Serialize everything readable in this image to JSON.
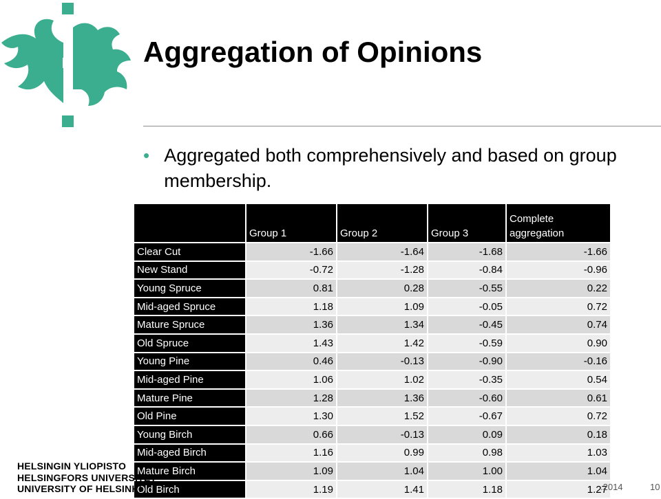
{
  "slide": {
    "title": "Aggregation of Opinions",
    "bullet": "Aggregated both comprehensively and based on group membership.",
    "colors": {
      "logo_green": "#3aae8e",
      "header_bg": "#000000",
      "row_odd": "#d9d9d9",
      "row_even": "#ededed"
    }
  },
  "table": {
    "headers": [
      "",
      "Group 1",
      "Group 2",
      "Group 3",
      "Complete aggregation"
    ],
    "rows": [
      {
        "label": "Clear Cut",
        "values": [
          "-1.66",
          "-1.64",
          "-1.68",
          "-1.66"
        ]
      },
      {
        "label": "New Stand",
        "values": [
          "-0.72",
          "-1.28",
          "-0.84",
          "-0.96"
        ]
      },
      {
        "label": "Young Spruce",
        "values": [
          "0.81",
          "0.28",
          "-0.55",
          "0.22"
        ]
      },
      {
        "label": "Mid-aged Spruce",
        "values": [
          "1.18",
          "1.09",
          "-0.05",
          "0.72"
        ]
      },
      {
        "label": "Mature Spruce",
        "values": [
          "1.36",
          "1.34",
          "-0.45",
          "0.74"
        ]
      },
      {
        "label": "Old Spruce",
        "values": [
          "1.43",
          "1.42",
          "-0.59",
          "0.90"
        ]
      },
      {
        "label": "Young Pine",
        "values": [
          "0.46",
          "-0.13",
          "-0.90",
          "-0.16"
        ]
      },
      {
        "label": "Mid-aged Pine",
        "values": [
          "1.06",
          "1.02",
          "-0.35",
          "0.54"
        ]
      },
      {
        "label": "Mature Pine",
        "values": [
          "1.28",
          "1.36",
          "-0.60",
          "0.61"
        ]
      },
      {
        "label": "Old Pine",
        "values": [
          "1.30",
          "1.52",
          "-0.67",
          "0.72"
        ]
      },
      {
        "label": "Young Birch",
        "values": [
          "0.66",
          "-0.13",
          "0.09",
          "0.18"
        ]
      },
      {
        "label": "Mid-aged Birch",
        "values": [
          "1.16",
          "0.99",
          "0.98",
          "1.03"
        ]
      },
      {
        "label": "Mature Birch",
        "values": [
          "1.09",
          "1.04",
          "1.00",
          "1.04"
        ]
      },
      {
        "label": "Old Birch",
        "values": [
          "1.19",
          "1.41",
          "1.18",
          "1.27"
        ]
      }
    ]
  },
  "footer": {
    "university_lines": [
      "HELSINGIN YLIOPISTO",
      "HELSINGFORS UNIVERSITET",
      "UNIVERSITY OF HELSINKI"
    ],
    "date_fragment": ".2014",
    "page_number": "10"
  }
}
